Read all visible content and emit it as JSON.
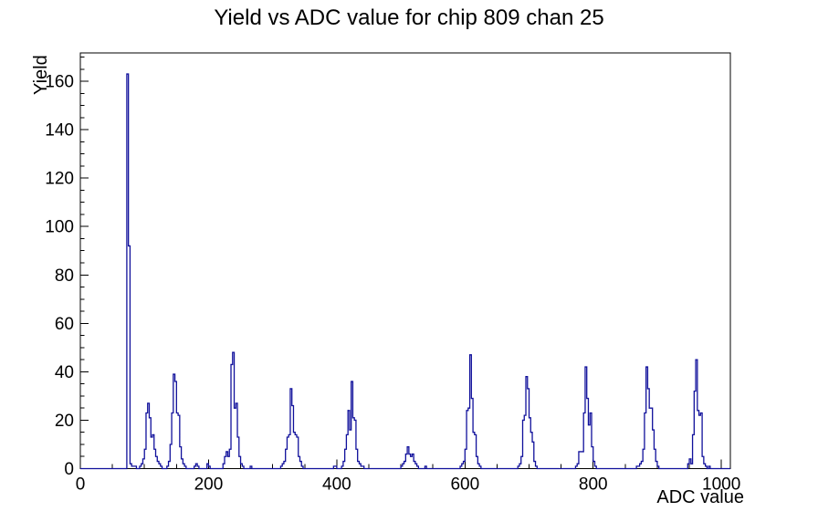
{
  "page": {
    "background": "#ffffff"
  },
  "chart_data": {
    "type": "line",
    "style": "histogram-step",
    "title": "Yield vs ADC value for chip 809 chan 25",
    "xlabel": "ADC value",
    "ylabel": "Yield",
    "xlim": [
      0,
      1014
    ],
    "ylim": [
      0,
      171.7
    ],
    "x_major_ticks": [
      0,
      200,
      400,
      600,
      800,
      1000
    ],
    "x_minor_step": 50,
    "y_major_ticks": [
      0,
      20,
      40,
      60,
      80,
      100,
      120,
      140,
      160
    ],
    "y_minor_step": 5,
    "grid": false,
    "legend": false,
    "frame_color": "#000000",
    "line_color": "#10109b",
    "bin_width": 2.5,
    "clusters": [
      {
        "start": 72.5,
        "heights": [
          163,
          92,
          2,
          1,
          1,
          1
        ]
      },
      {
        "start": 92.5,
        "heights": [
          1,
          2,
          4,
          8,
          23,
          27,
          21,
          13,
          14,
          8,
          5,
          3,
          2,
          1
        ]
      },
      {
        "start": 135,
        "heights": [
          1,
          3,
          10,
          23,
          39,
          36,
          23,
          22,
          9,
          4,
          2,
          1
        ]
      },
      {
        "start": 177.5,
        "heights": [
          1,
          2,
          1
        ]
      },
      {
        "start": 197.5,
        "heights": [
          2,
          1
        ]
      },
      {
        "start": 222.5,
        "heights": [
          2,
          5,
          7,
          5,
          8,
          43,
          48,
          25,
          27,
          13,
          5,
          2,
          1
        ]
      },
      {
        "start": 265,
        "heights": [
          1
        ]
      },
      {
        "start": 312.5,
        "heights": [
          1,
          2,
          3,
          8,
          13,
          14,
          33,
          26,
          15,
          14,
          13,
          5,
          3,
          1
        ]
      },
      {
        "start": 395,
        "heights": [
          1,
          1
        ]
      },
      {
        "start": 407.5,
        "heights": [
          1,
          3,
          8,
          14,
          24,
          16,
          36,
          21,
          20,
          8,
          3,
          2,
          1,
          1
        ]
      },
      {
        "start": 500,
        "heights": [
          1,
          2,
          3,
          6,
          9,
          6,
          5,
          6,
          3,
          2,
          1
        ]
      },
      {
        "start": 537.5,
        "heights": [
          1
        ]
      },
      {
        "start": 592.5,
        "heights": [
          1,
          2,
          3,
          8,
          24,
          25,
          47,
          29,
          15,
          14,
          5,
          2,
          1
        ]
      },
      {
        "start": 682.5,
        "heights": [
          1,
          2,
          5,
          20,
          22,
          38,
          33,
          21,
          15,
          11,
          3,
          1
        ]
      },
      {
        "start": 772.5,
        "heights": [
          1,
          2,
          7,
          7,
          7,
          23,
          42,
          29,
          18,
          23,
          9,
          3,
          1
        ]
      },
      {
        "start": 867.5,
        "heights": [
          1,
          1,
          2,
          3,
          8,
          23,
          42,
          33,
          25,
          25,
          16,
          8,
          3,
          1
        ]
      },
      {
        "start": 947.5,
        "heights": [
          2,
          4,
          2,
          14,
          32,
          45,
          24,
          22,
          23,
          5,
          2,
          1
        ]
      },
      {
        "start": 980,
        "heights": [
          1
        ]
      }
    ]
  }
}
